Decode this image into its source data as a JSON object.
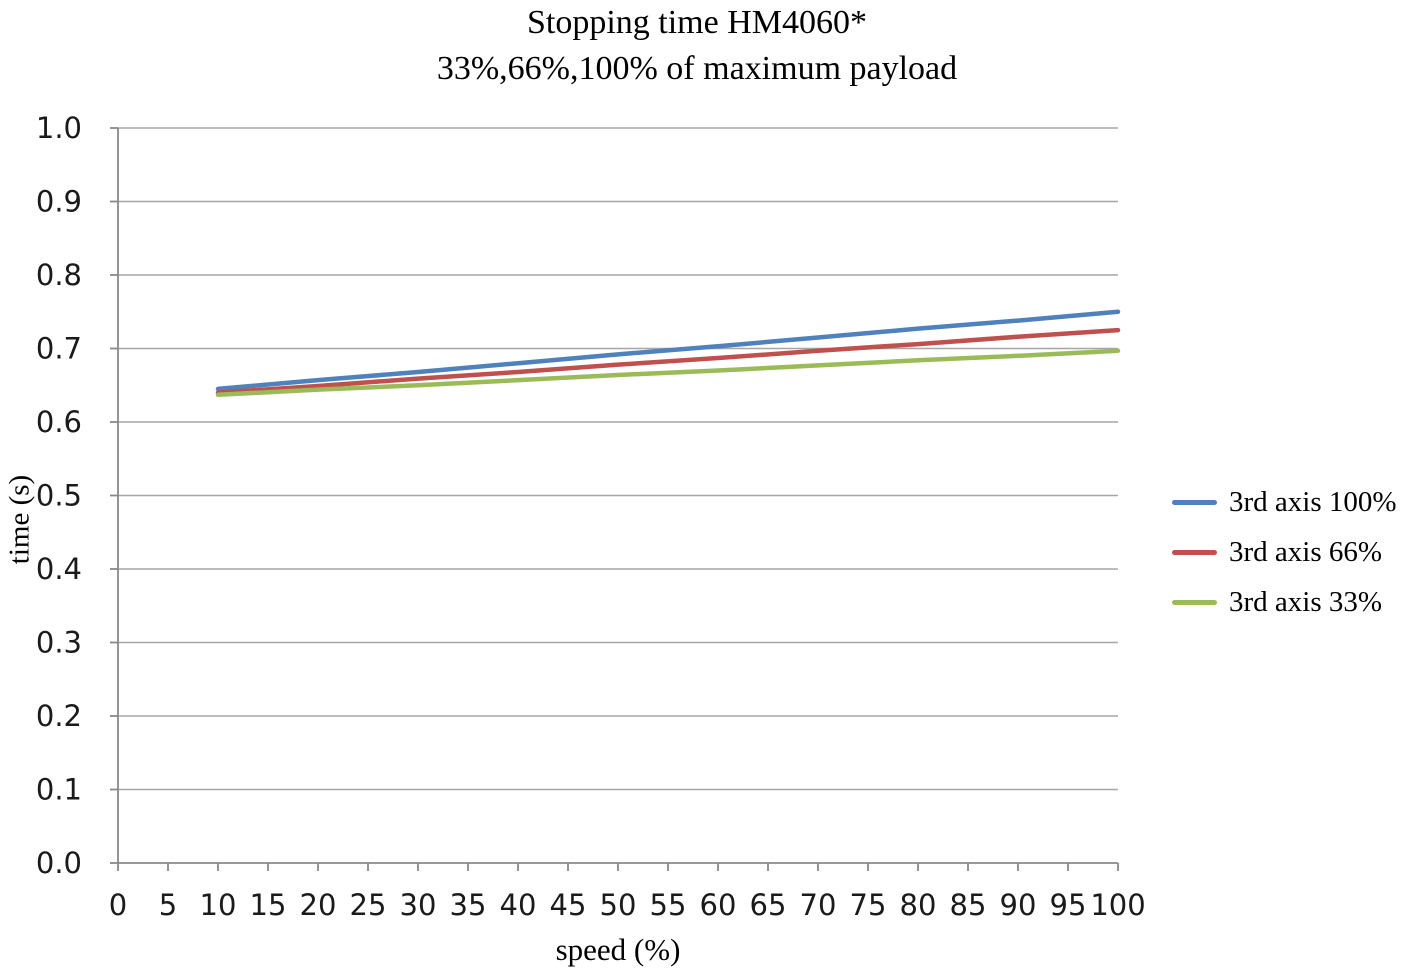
{
  "chart_data": {
    "type": "line",
    "title": "Stopping time HM4060*",
    "subtitle": "33%,66%,100% of maximum payload",
    "xlabel": "speed (%)",
    "ylabel": "time (s)",
    "xlim": [
      0,
      100
    ],
    "ylim": [
      0.0,
      1.0
    ],
    "xticks": [
      0,
      5,
      10,
      15,
      20,
      25,
      30,
      35,
      40,
      45,
      50,
      55,
      60,
      65,
      70,
      75,
      80,
      85,
      90,
      95,
      100
    ],
    "ytick_labels": [
      "0.0",
      "0.1",
      "0.2",
      "0.3",
      "0.4",
      "0.5",
      "0.6",
      "0.7",
      "0.8",
      "0.9",
      "1.0"
    ],
    "grid": "horizontal",
    "legend_position": "right",
    "x": [
      10,
      20,
      30,
      40,
      50,
      60,
      70,
      80,
      90,
      100
    ],
    "series": [
      {
        "name": "3rd axis 100%",
        "color": "#4F81BD",
        "values": [
          0.645,
          0.657,
          0.668,
          0.68,
          0.692,
          0.703,
          0.715,
          0.727,
          0.738,
          0.75
        ]
      },
      {
        "name": "3rd axis 66%",
        "color": "#C0504D",
        "values": [
          0.64,
          0.649,
          0.659,
          0.668,
          0.678,
          0.687,
          0.697,
          0.706,
          0.716,
          0.725
        ]
      },
      {
        "name": "3rd axis 33%",
        "color": "#9BBB59",
        "values": [
          0.637,
          0.644,
          0.65,
          0.657,
          0.664,
          0.67,
          0.677,
          0.684,
          0.69,
          0.697
        ]
      }
    ],
    "colors": {
      "gridline": "#A6A6A6",
      "axis": "#898989"
    }
  }
}
